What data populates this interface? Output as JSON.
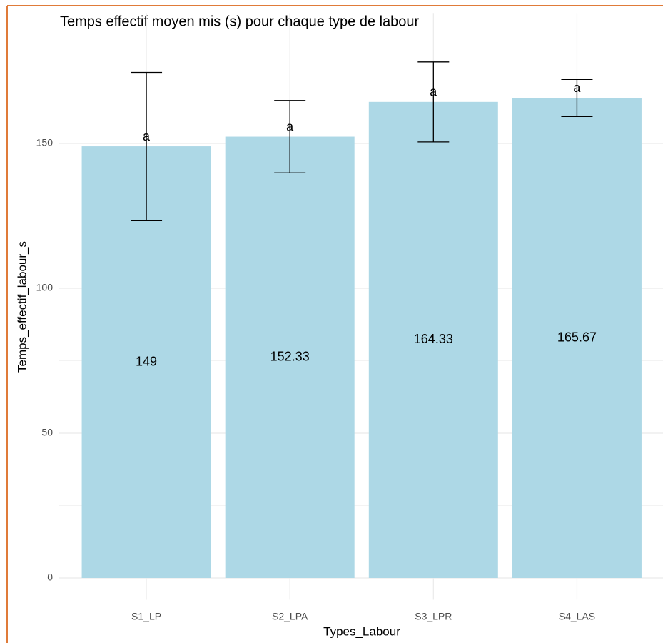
{
  "chart_data": {
    "type": "bar",
    "title": "Temps effectif moyen mis (s) pour chaque type de labour",
    "x_label": "Types_Labour",
    "y_label": "Temps_effectif_labour_s",
    "categories": [
      "S1_LP",
      "S2_LPA",
      "S3_LPR",
      "S4_LAS"
    ],
    "values": [
      149,
      152.33,
      164.33,
      165.67
    ],
    "errors": [
      25.5,
      12.5,
      13.8,
      6.4
    ],
    "letters": [
      "a",
      "a",
      "a",
      "a"
    ],
    "color": "#add8e6",
    "ylim": [
      -7.5,
      195
    ],
    "yticks": [
      0,
      50,
      100,
      150
    ],
    "minor_yticks": [
      25,
      75,
      125,
      175
    ],
    "grid": true
  }
}
